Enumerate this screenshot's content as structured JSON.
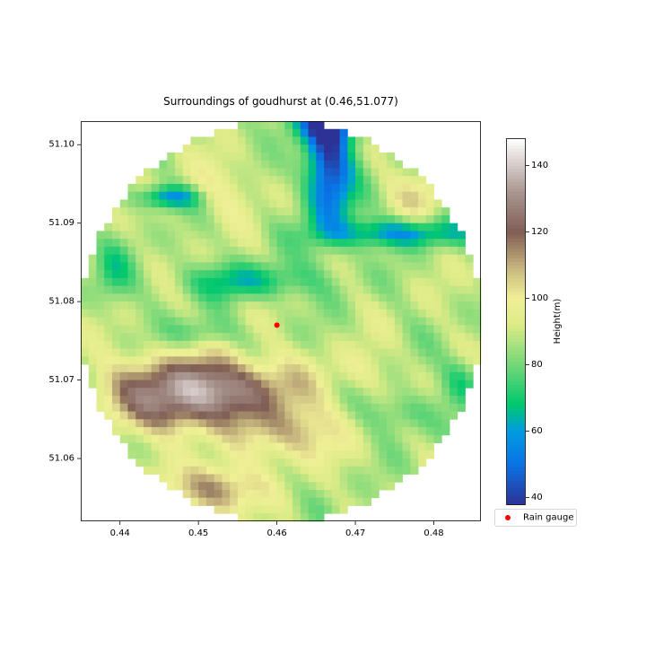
{
  "chart_data": {
    "type": "heatmap",
    "title": "Surroundings of goudhurst at (0.46,51.077)",
    "xlabel": "",
    "ylabel": "",
    "xlim": [
      0.435,
      0.486
    ],
    "ylim": [
      51.052,
      51.103
    ],
    "x_ticks": [
      "0.44",
      "0.45",
      "0.46",
      "0.47",
      "0.48"
    ],
    "x_tick_values": [
      0.44,
      0.45,
      0.46,
      0.47,
      0.48
    ],
    "y_ticks": [
      "51.06",
      "51.07",
      "51.08",
      "51.09",
      "51.10"
    ],
    "y_tick_values": [
      51.06,
      51.07,
      51.08,
      51.09,
      51.1
    ],
    "colormap": "terrain",
    "colorbar": {
      "label": "Height(m)",
      "range": [
        38,
        148
      ],
      "ticks": [
        "40",
        "60",
        "80",
        "100",
        "120",
        "140"
      ],
      "tick_values": [
        40,
        60,
        80,
        100,
        120,
        140
      ]
    },
    "gauge": {
      "x": 0.46,
      "y": 51.077,
      "color": "#ff0000"
    },
    "legend": {
      "label": "Rain gauge",
      "placement": "below-colorbar"
    },
    "region": "circular",
    "grid": false
  }
}
